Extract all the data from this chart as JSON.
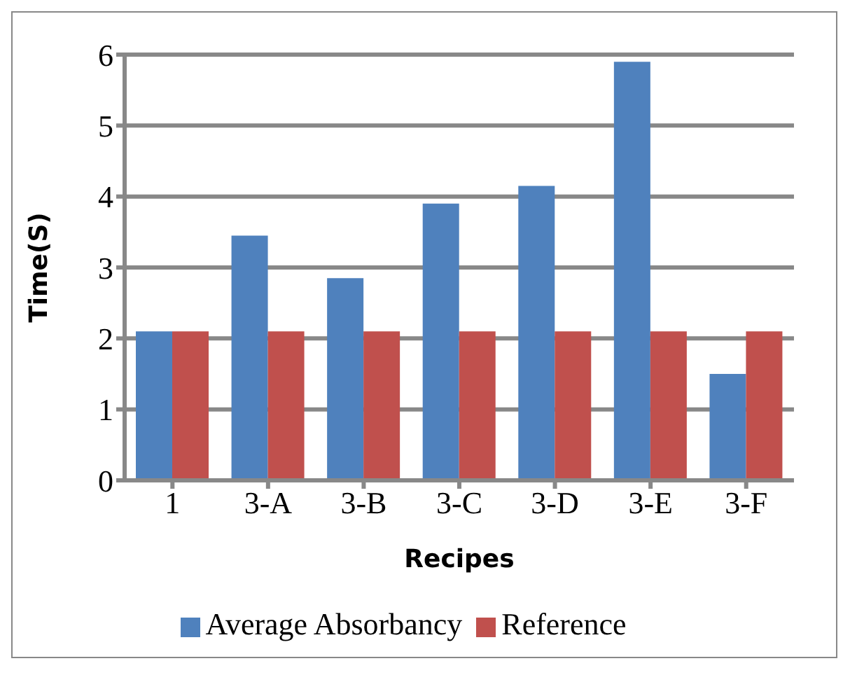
{
  "chart_data": {
    "type": "bar",
    "xlabel": "Recipes",
    "ylabel": "Time(S)",
    "categories": [
      "1",
      "3-A",
      "3-B",
      "3-C",
      "3-D",
      "3-E",
      "3-F"
    ],
    "series": [
      {
        "name": "Average Absorbancy",
        "color": "#4f81bd",
        "values": [
          2.1,
          3.45,
          2.85,
          3.9,
          4.15,
          5.9,
          1.5
        ]
      },
      {
        "name": "Reference",
        "color": "#c0504d",
        "values": [
          2.1,
          2.1,
          2.1,
          2.1,
          2.1,
          2.1,
          2.1
        ]
      }
    ],
    "ylim": [
      0,
      6
    ],
    "yticks": [
      0,
      1,
      2,
      3,
      4,
      5,
      6
    ],
    "grid": "y",
    "legend": "bottom"
  }
}
